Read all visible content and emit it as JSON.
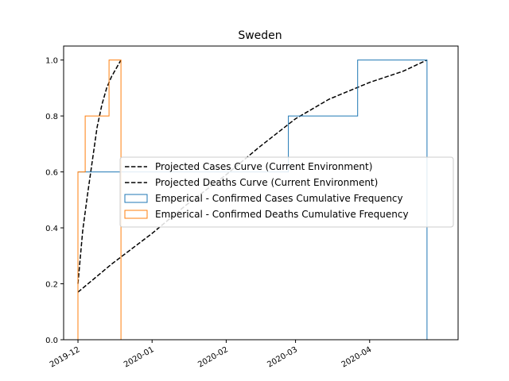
{
  "chart_data": {
    "type": "line",
    "title": "Sweden",
    "xlabel": "",
    "ylabel": "",
    "xlim": [
      "2019-11-25",
      "2020-05-08"
    ],
    "ylim": [
      0,
      1.05
    ],
    "x_ticks": [
      "2019-12-01",
      "2020-01-01",
      "2020-02-01",
      "2020-03-01",
      "2020-04-01"
    ],
    "x_tick_labels": [
      "2019-12",
      "2020-01",
      "2020-02",
      "2020-03",
      "2020-04"
    ],
    "y_ticks": [
      0.0,
      0.2,
      0.4,
      0.6,
      0.8,
      1.0
    ],
    "y_tick_labels": [
      "0.0",
      "0.2",
      "0.4",
      "0.6",
      "0.8",
      "1.0"
    ],
    "grid": false,
    "legend_position": "center-right",
    "series": [
      {
        "name": "Projected Cases Curve (Current Environment)",
        "kind": "line",
        "style": "dashed",
        "color": "#000000",
        "x": [
          "2019-12-01",
          "2019-12-15",
          "2020-01-01",
          "2020-01-15",
          "2020-02-01",
          "2020-02-15",
          "2020-03-01",
          "2020-03-15",
          "2020-04-01",
          "2020-04-15",
          "2020-04-25"
        ],
        "y": [
          0.17,
          0.27,
          0.38,
          0.48,
          0.59,
          0.69,
          0.79,
          0.86,
          0.92,
          0.96,
          1.0
        ]
      },
      {
        "name": "Projected Deaths Curve (Current Environment)",
        "kind": "line",
        "style": "dashed",
        "color": "#000000",
        "x": [
          "2019-12-01",
          "2019-12-03",
          "2019-12-05",
          "2019-12-07",
          "2019-12-09",
          "2019-12-11",
          "2019-12-13",
          "2019-12-15",
          "2019-12-17",
          "2019-12-19"
        ],
        "y": [
          0.2,
          0.39,
          0.52,
          0.64,
          0.76,
          0.84,
          0.9,
          0.94,
          0.97,
          1.0
        ]
      },
      {
        "name": "Emperical - Confirmed Cases Cumulative Frequency",
        "kind": "step",
        "color": "#1f77b4",
        "edges": [
          "2019-12-01",
          "2020-02-27",
          "2020-03-27",
          "2020-04-25"
        ],
        "values": [
          0.6,
          0.8,
          1.0
        ]
      },
      {
        "name": "Emperical - Confirmed Deaths Cumulative Frequency",
        "kind": "step",
        "color": "#ff7f0e",
        "edges": [
          "2019-12-01",
          "2019-12-04",
          "2019-12-14",
          "2019-12-19"
        ],
        "values": [
          0.6,
          0.8,
          1.0
        ]
      }
    ]
  }
}
